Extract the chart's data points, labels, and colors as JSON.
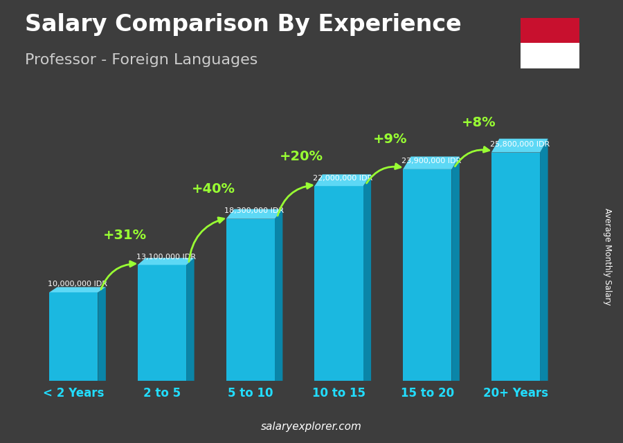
{
  "title": "Salary Comparison By Experience",
  "subtitle": "Professor - Foreign Languages",
  "categories": [
    "< 2 Years",
    "2 to 5",
    "5 to 10",
    "10 to 15",
    "15 to 20",
    "20+ Years"
  ],
  "values": [
    10000000,
    13100000,
    18300000,
    22000000,
    23900000,
    25800000
  ],
  "salary_labels": [
    "10,000,000 IDR",
    "13,100,000 IDR",
    "18,300,000 IDR",
    "22,000,000 IDR",
    "23,900,000 IDR",
    "25,800,000 IDR"
  ],
  "pct_changes": [
    null,
    "+31%",
    "+40%",
    "+20%",
    "+9%",
    "+8%"
  ],
  "bar_main_color": "#1BB8E0",
  "bar_dark_color": "#0A85A8",
  "bar_top_color": "#5DD8F5",
  "title_color": "#FFFFFF",
  "subtitle_color": "#CCCCCC",
  "label_color": "#FFFFFF",
  "pct_color": "#99FF33",
  "xlabel_color": "#22DDFF",
  "bg_color": "#3d3d3d",
  "ylabel_text": "Average Monthly Salary",
  "watermark": "salaryexplorer.com",
  "ylim": [
    0,
    29000000
  ],
  "title_fontsize": 24,
  "subtitle_fontsize": 16,
  "flag_top": "#C8102E",
  "flag_bottom": "#FFFFFF"
}
